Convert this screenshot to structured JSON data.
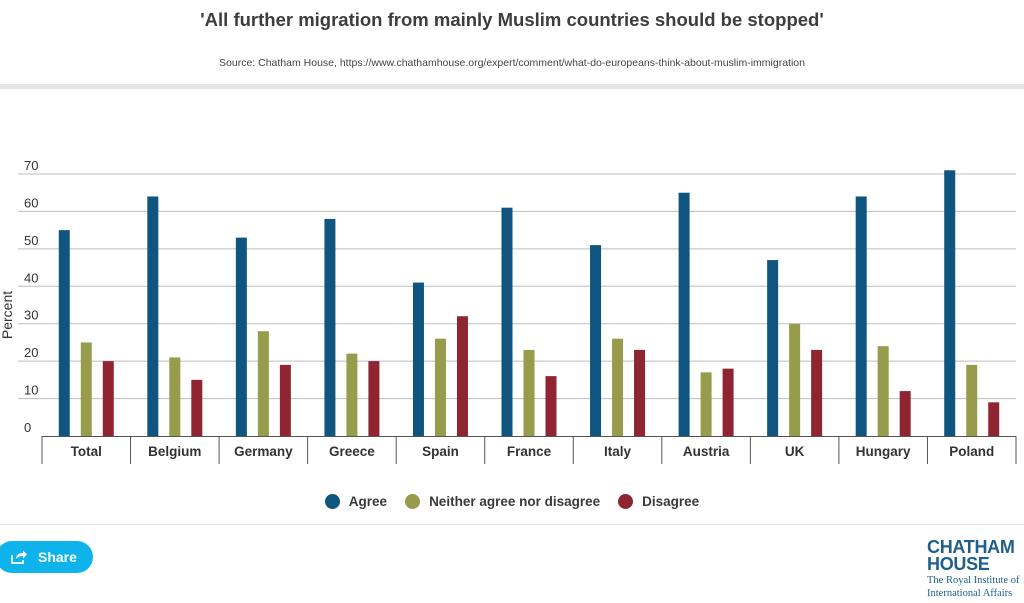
{
  "header": {
    "title": "'All further migration from mainly Muslim countries should be stopped'",
    "source": "Source: Chatham House, https://www.chathamhouse.org/expert/comment/what-do-europeans-think-about-muslim-immigration"
  },
  "chart_data": {
    "type": "bar",
    "title": "'All further migration from mainly Muslim countries should be stopped'",
    "xlabel": "",
    "ylabel": "Percent",
    "ylim": [
      0,
      70
    ],
    "yticks": [
      0,
      10,
      20,
      30,
      40,
      50,
      60,
      70
    ],
    "grid": true,
    "legend_position": "bottom-center",
    "categories": [
      "Total",
      "Belgium",
      "Germany",
      "Greece",
      "Spain",
      "France",
      "Italy",
      "Austria",
      "UK",
      "Hungary",
      "Poland"
    ],
    "series": [
      {
        "name": "Agree",
        "color": "#10557f",
        "values": [
          55,
          64,
          53,
          58,
          41,
          61,
          51,
          65,
          47,
          64,
          71
        ]
      },
      {
        "name": "Neither agree nor disagree",
        "color": "#979b4c",
        "values": [
          25,
          21,
          28,
          22,
          26,
          23,
          26,
          17,
          30,
          24,
          19
        ]
      },
      {
        "name": "Disagree",
        "color": "#8e2530",
        "values": [
          20,
          15,
          19,
          20,
          32,
          16,
          23,
          18,
          23,
          12,
          9
        ]
      }
    ]
  },
  "legend": {
    "items": [
      {
        "label": "Agree",
        "color": "#10557f"
      },
      {
        "label": "Neither agree nor disagree",
        "color": "#979b4c"
      },
      {
        "label": "Disagree",
        "color": "#8e2530"
      }
    ]
  },
  "footer": {
    "share_label": "Share",
    "share_icon": "share-icon",
    "logo_line1": "CHATHAM",
    "logo_line2": "HOUSE",
    "logo_sub1": "The Royal Institute of",
    "logo_sub2": "International Affairs"
  }
}
